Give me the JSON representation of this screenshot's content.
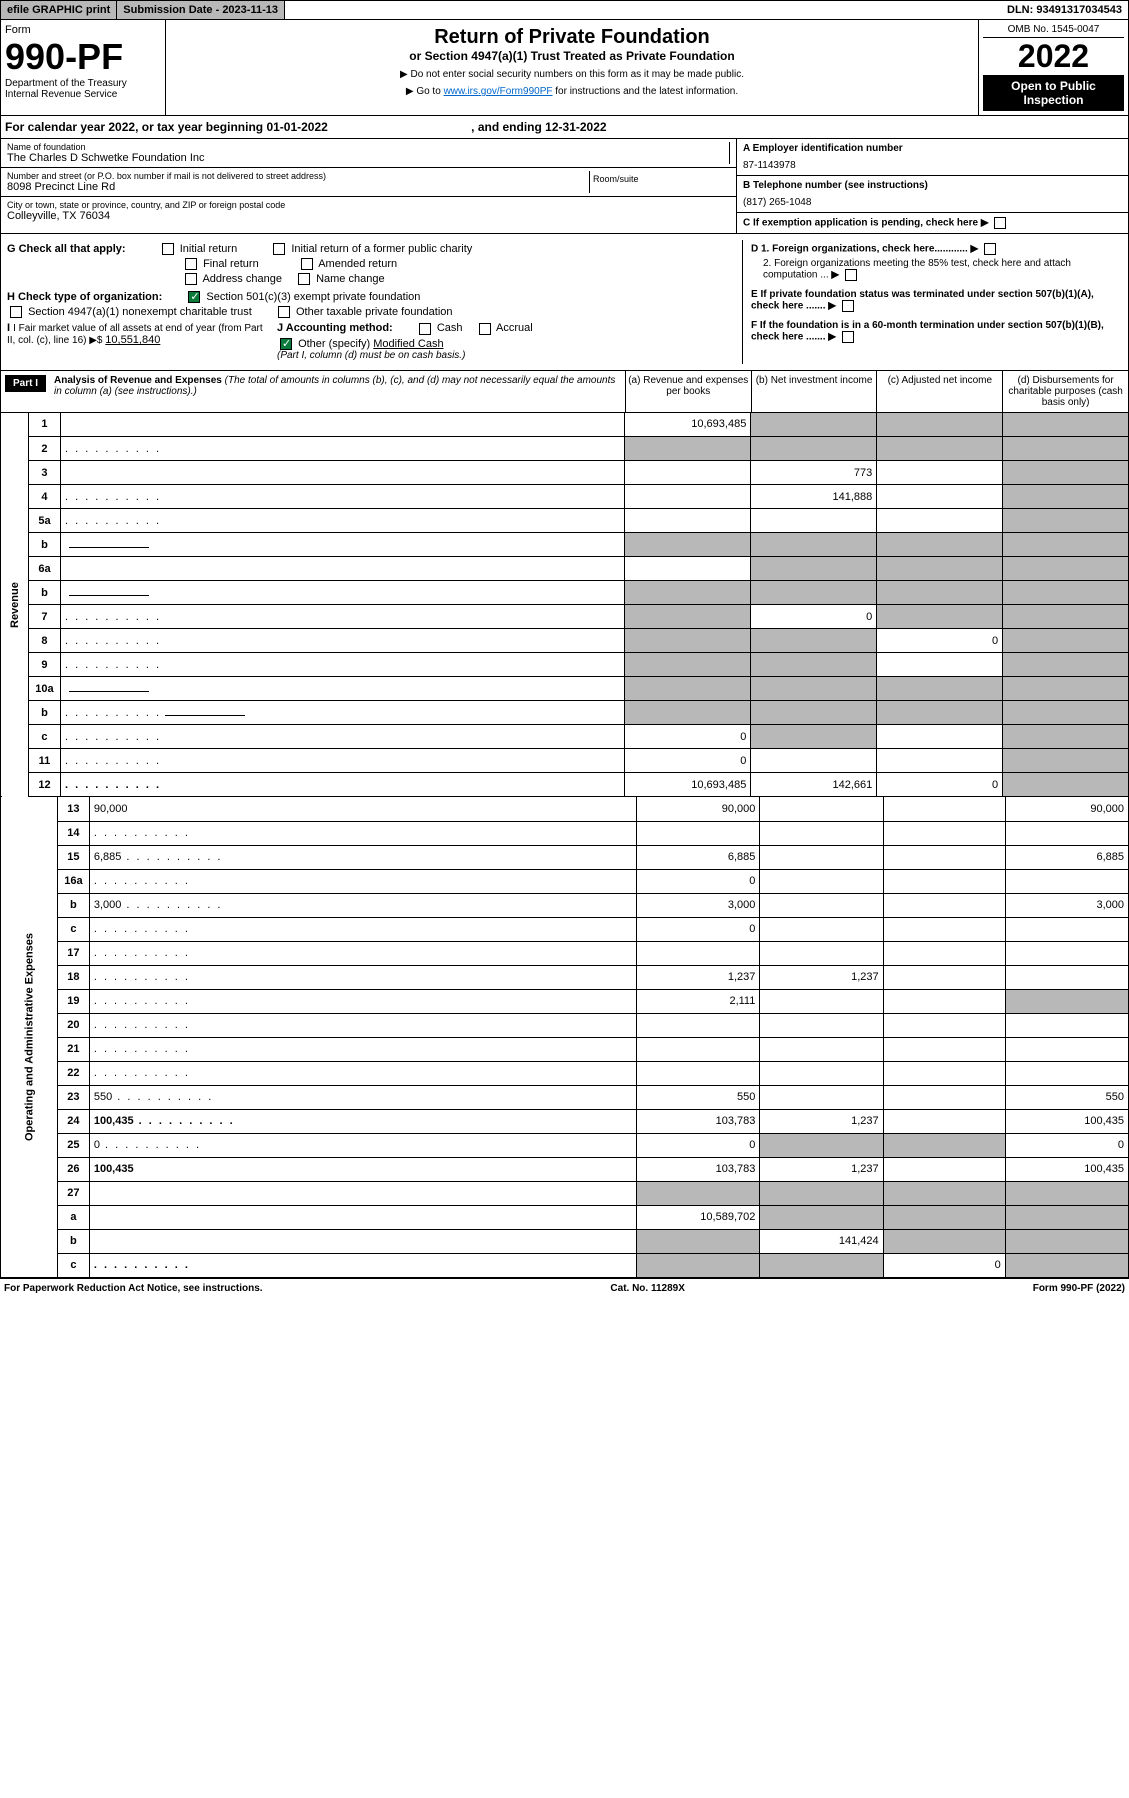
{
  "top": {
    "efile": "efile GRAPHIC print",
    "subdate_label": "Submission Date - 2023-11-13",
    "dln": "DLN: 93491317034543"
  },
  "header": {
    "form": "Form",
    "num": "990-PF",
    "dept": "Department of the Treasury",
    "irs": "Internal Revenue Service",
    "title": "Return of Private Foundation",
    "subtitle": "or Section 4947(a)(1) Trust Treated as Private Foundation",
    "instr1": "▶ Do not enter social security numbers on this form as it may be made public.",
    "instr2_pre": "▶ Go to ",
    "instr2_link": "www.irs.gov/Form990PF",
    "instr2_post": " for instructions and the latest information.",
    "omb": "OMB No. 1545-0047",
    "year": "2022",
    "open": "Open to Public Inspection"
  },
  "calyear": {
    "text_pre": "For calendar year 2022, or tax year beginning 01-01-2022",
    "text_mid": ", and ending 12-31-2022"
  },
  "info": {
    "name_label": "Name of foundation",
    "name": "The Charles D Schwetke Foundation Inc",
    "addr_label": "Number and street (or P.O. box number if mail is not delivered to street address)",
    "addr": "8098 Precinct Line Rd",
    "room_label": "Room/suite",
    "city_label": "City or town, state or province, country, and ZIP or foreign postal code",
    "city": "Colleyville, TX  76034",
    "a_label": "A Employer identification number",
    "a_val": "87-1143978",
    "b_label": "B Telephone number (see instructions)",
    "b_val": "(817) 265-1048",
    "c_label": "C If exemption application is pending, check here"
  },
  "checks": {
    "g": "G Check all that apply:",
    "g1": "Initial return",
    "g2": "Initial return of a former public charity",
    "g3": "Final return",
    "g4": "Amended return",
    "g5": "Address change",
    "g6": "Name change",
    "h": "H Check type of organization:",
    "h1": "Section 501(c)(3) exempt private foundation",
    "h2": "Section 4947(a)(1) nonexempt charitable trust",
    "h3": "Other taxable private foundation",
    "i": "I Fair market value of all assets at end of year (from Part II, col. (c), line 16) ▶$ ",
    "i_val": "10,551,840",
    "j": "J Accounting method:",
    "j1": "Cash",
    "j2": "Accrual",
    "j3": "Other (specify)",
    "j3v": "Modified Cash",
    "j_note": "(Part I, column (d) must be on cash basis.)",
    "d1": "D 1. Foreign organizations, check here............",
    "d2": "2. Foreign organizations meeting the 85% test, check here and attach computation ...",
    "e": "E  If private foundation status was terminated under section 507(b)(1)(A), check here .......",
    "f": "F  If the foundation is in a 60-month termination under section 507(b)(1)(B), check here .......",
    "arrow": "▶"
  },
  "part1": {
    "label": "Part I",
    "title": "Analysis of Revenue and Expenses",
    "note": "(The total of amounts in columns (b), (c), and (d) may not necessarily equal the amounts in column (a) (see instructions).)",
    "col_a": "(a)   Revenue and expenses per books",
    "col_b": "(b)   Net investment income",
    "col_c": "(c)   Adjusted net income",
    "col_d": "(d)   Disbursements for charitable purposes (cash basis only)"
  },
  "side": {
    "rev": "Revenue",
    "exp": "Operating and Administrative Expenses"
  },
  "rows": [
    {
      "n": "1",
      "d": "",
      "a": "10,693,485",
      "b": "",
      "c": "",
      "sb": true,
      "sc": true,
      "sd": true
    },
    {
      "n": "2",
      "d": "",
      "a": "",
      "b": "",
      "c": "",
      "sa": true,
      "sb": true,
      "sc": true,
      "sd": true,
      "dots": true
    },
    {
      "n": "3",
      "d": "",
      "a": "",
      "b": "773",
      "c": "",
      "sd": true
    },
    {
      "n": "4",
      "d": "",
      "a": "",
      "b": "141,888",
      "c": "",
      "sd": true,
      "dots": true
    },
    {
      "n": "5a",
      "d": "",
      "a": "",
      "b": "",
      "c": "",
      "sd": true,
      "dots": true
    },
    {
      "n": "b",
      "d": "",
      "a": "",
      "b": "",
      "c": "",
      "sa": true,
      "sb": true,
      "sc": true,
      "sd": true,
      "box": true
    },
    {
      "n": "6a",
      "d": "",
      "a": "",
      "b": "",
      "c": "",
      "sb": true,
      "sc": true,
      "sd": true
    },
    {
      "n": "b",
      "d": "",
      "a": "",
      "b": "",
      "c": "",
      "sa": true,
      "sb": true,
      "sc": true,
      "sd": true,
      "box": true
    },
    {
      "n": "7",
      "d": "",
      "a": "",
      "b": "0",
      "c": "",
      "sa": true,
      "sc": true,
      "sd": true,
      "dots": true
    },
    {
      "n": "8",
      "d": "",
      "a": "",
      "b": "",
      "c": "0",
      "sa": true,
      "sb": true,
      "sd": true,
      "dots": true
    },
    {
      "n": "9",
      "d": "",
      "a": "",
      "b": "",
      "c": "",
      "sa": true,
      "sb": true,
      "sd": true,
      "dots": true
    },
    {
      "n": "10a",
      "d": "",
      "a": "",
      "b": "",
      "c": "",
      "sa": true,
      "sb": true,
      "sc": true,
      "sd": true,
      "box": true
    },
    {
      "n": "b",
      "d": "",
      "a": "",
      "b": "",
      "c": "",
      "sa": true,
      "sb": true,
      "sc": true,
      "sd": true,
      "dots": true,
      "box": true
    },
    {
      "n": "c",
      "d": "",
      "a": "0",
      "b": "",
      "c": "",
      "sb": true,
      "sd": true,
      "dots": true
    },
    {
      "n": "11",
      "d": "",
      "a": "0",
      "b": "",
      "c": "",
      "sd": true,
      "dots": true
    },
    {
      "n": "12",
      "d": "",
      "a": "10,693,485",
      "b": "142,661",
      "c": "0",
      "sd": true,
      "bold": true,
      "dots": true
    }
  ],
  "exp_rows": [
    {
      "n": "13",
      "d": "90,000",
      "a": "90,000",
      "b": "",
      "c": ""
    },
    {
      "n": "14",
      "d": "",
      "a": "",
      "b": "",
      "c": "",
      "dots": true
    },
    {
      "n": "15",
      "d": "6,885",
      "a": "6,885",
      "b": "",
      "c": "",
      "dots": true
    },
    {
      "n": "16a",
      "d": "",
      "a": "0",
      "b": "",
      "c": "",
      "dots": true
    },
    {
      "n": "b",
      "d": "3,000",
      "a": "3,000",
      "b": "",
      "c": "",
      "dots": true
    },
    {
      "n": "c",
      "d": "",
      "a": "0",
      "b": "",
      "c": "",
      "dots": true
    },
    {
      "n": "17",
      "d": "",
      "a": "",
      "b": "",
      "c": "",
      "dots": true
    },
    {
      "n": "18",
      "d": "",
      "a": "1,237",
      "b": "1,237",
      "c": "",
      "dots": true
    },
    {
      "n": "19",
      "d": "",
      "a": "2,111",
      "b": "",
      "c": "",
      "sd": true,
      "dots": true
    },
    {
      "n": "20",
      "d": "",
      "a": "",
      "b": "",
      "c": "",
      "dots": true
    },
    {
      "n": "21",
      "d": "",
      "a": "",
      "b": "",
      "c": "",
      "dots": true
    },
    {
      "n": "22",
      "d": "",
      "a": "",
      "b": "",
      "c": "",
      "dots": true
    },
    {
      "n": "23",
      "d": "550",
      "a": "550",
      "b": "",
      "c": "",
      "dots": true
    },
    {
      "n": "24",
      "d": "100,435",
      "a": "103,783",
      "b": "1,237",
      "c": "",
      "bold": true,
      "dots": true
    },
    {
      "n": "25",
      "d": "0",
      "a": "0",
      "b": "",
      "c": "",
      "sb": true,
      "sc": true,
      "dots": true
    },
    {
      "n": "26",
      "d": "100,435",
      "a": "103,783",
      "b": "1,237",
      "c": "",
      "bold": true
    },
    {
      "n": "27",
      "d": "",
      "a": "",
      "b": "",
      "c": "",
      "sa": true,
      "sb": true,
      "sc": true,
      "sd": true
    },
    {
      "n": "a",
      "d": "",
      "a": "10,589,702",
      "b": "",
      "c": "",
      "sb": true,
      "sc": true,
      "sd": true,
      "bold": true
    },
    {
      "n": "b",
      "d": "",
      "a": "",
      "b": "141,424",
      "c": "",
      "sa": true,
      "sc": true,
      "sd": true,
      "bold": true
    },
    {
      "n": "c",
      "d": "",
      "a": "",
      "b": "",
      "c": "0",
      "sa": true,
      "sb": true,
      "sd": true,
      "bold": true,
      "dots": true
    }
  ],
  "footer": {
    "left": "For Paperwork Reduction Act Notice, see instructions.",
    "mid": "Cat. No. 11289X",
    "right": "Form 990-PF (2022)"
  }
}
